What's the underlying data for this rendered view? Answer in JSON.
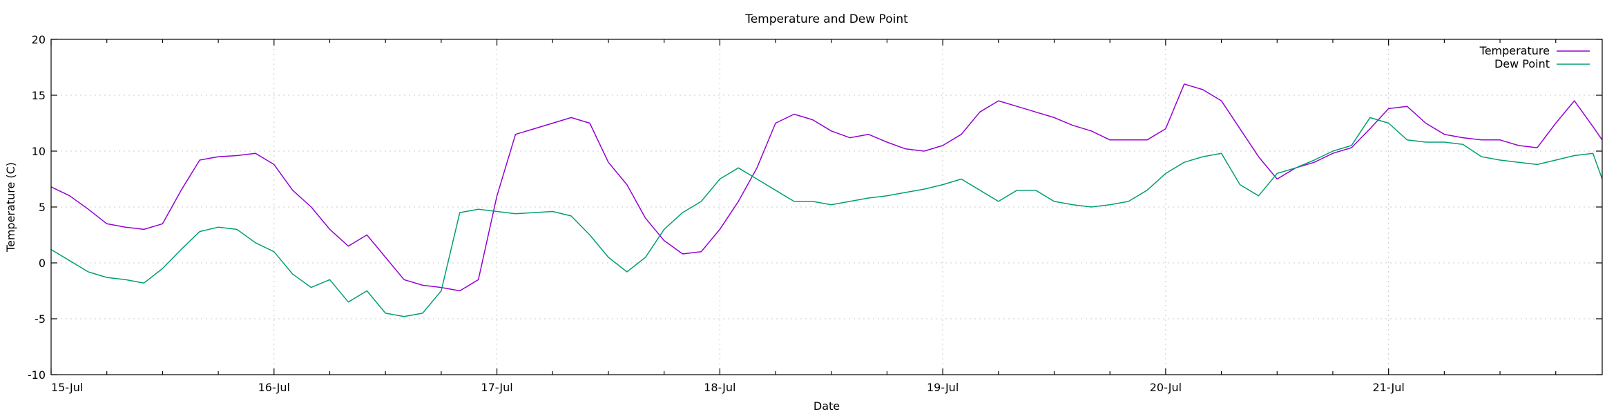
{
  "chart_data": {
    "type": "line",
    "title": "Temperature and Dew Point",
    "xlabel": "Date",
    "ylabel": "Temperature (C)",
    "x_ticks": [
      "15-Jul",
      "16-Jul",
      "17-Jul",
      "18-Jul",
      "19-Jul",
      "20-Jul",
      "21-Jul"
    ],
    "xlim": [
      "15-Jul 00:00",
      "21-Jul 23:00"
    ],
    "y_ticks": [
      -10,
      -5,
      0,
      5,
      10,
      15,
      20
    ],
    "ylim": [
      -10,
      20
    ],
    "grid": true,
    "legend_position": "top-right",
    "x": [
      "15-Jul 00:00",
      "15-Jul 02:00",
      "15-Jul 04:00",
      "15-Jul 06:00",
      "15-Jul 08:00",
      "15-Jul 10:00",
      "15-Jul 12:00",
      "15-Jul 14:00",
      "15-Jul 16:00",
      "15-Jul 18:00",
      "15-Jul 20:00",
      "15-Jul 22:00",
      "16-Jul 00:00",
      "16-Jul 02:00",
      "16-Jul 04:00",
      "16-Jul 06:00",
      "16-Jul 08:00",
      "16-Jul 10:00",
      "16-Jul 12:00",
      "16-Jul 14:00",
      "16-Jul 16:00",
      "16-Jul 18:00",
      "16-Jul 20:00",
      "16-Jul 22:00",
      "17-Jul 00:00",
      "17-Jul 02:00",
      "17-Jul 04:00",
      "17-Jul 06:00",
      "17-Jul 08:00",
      "17-Jul 10:00",
      "17-Jul 12:00",
      "17-Jul 14:00",
      "17-Jul 16:00",
      "17-Jul 18:00",
      "17-Jul 20:00",
      "17-Jul 22:00",
      "18-Jul 00:00",
      "18-Jul 02:00",
      "18-Jul 04:00",
      "18-Jul 06:00",
      "18-Jul 08:00",
      "18-Jul 10:00",
      "18-Jul 12:00",
      "18-Jul 14:00",
      "18-Jul 16:00",
      "18-Jul 18:00",
      "18-Jul 20:00",
      "18-Jul 22:00",
      "19-Jul 00:00",
      "19-Jul 02:00",
      "19-Jul 04:00",
      "19-Jul 06:00",
      "19-Jul 08:00",
      "19-Jul 10:00",
      "19-Jul 12:00",
      "19-Jul 14:00",
      "19-Jul 16:00",
      "19-Jul 18:00",
      "19-Jul 20:00",
      "19-Jul 22:00",
      "20-Jul 00:00",
      "20-Jul 02:00",
      "20-Jul 04:00",
      "20-Jul 06:00",
      "20-Jul 08:00",
      "20-Jul 10:00",
      "20-Jul 12:00",
      "20-Jul 14:00",
      "20-Jul 16:00",
      "20-Jul 18:00",
      "20-Jul 20:00",
      "20-Jul 22:00",
      "21-Jul 00:00",
      "21-Jul 02:00",
      "21-Jul 04:00",
      "21-Jul 06:00",
      "21-Jul 08:00",
      "21-Jul 10:00",
      "21-Jul 12:00",
      "21-Jul 14:00",
      "21-Jul 16:00",
      "21-Jul 18:00",
      "21-Jul 20:00",
      "21-Jul 22:00",
      "21-Jul 23:00"
    ],
    "series": [
      {
        "name": "Temperature",
        "color": "#9400d3",
        "values": [
          6.8,
          6.0,
          4.8,
          3.5,
          3.2,
          3.0,
          3.5,
          6.5,
          9.2,
          9.5,
          9.6,
          9.8,
          8.8,
          6.5,
          5.0,
          3.0,
          1.5,
          2.5,
          0.5,
          -1.5,
          -2.0,
          -2.2,
          -2.5,
          -1.5,
          6.0,
          11.5,
          12.0,
          12.5,
          13.0,
          12.5,
          9.0,
          7.0,
          4.0,
          2.0,
          0.8,
          1.0,
          3.0,
          5.5,
          8.5,
          12.5,
          13.3,
          12.8,
          11.8,
          11.2,
          11.5,
          10.8,
          10.2,
          10.0,
          10.5,
          11.5,
          13.5,
          14.5,
          14.0,
          13.5,
          13.0,
          12.3,
          11.8,
          11.0,
          11.0,
          11.0,
          12.0,
          16.0,
          15.5,
          14.5,
          12.0,
          9.5,
          7.5,
          8.5,
          9.0,
          9.8,
          10.3,
          12.0,
          13.8,
          14.0,
          12.5,
          11.5,
          11.2,
          11.0,
          11.0,
          10.5,
          10.3,
          12.5,
          14.5,
          12.2,
          11.0
        ]
      },
      {
        "name": "Dew Point",
        "color": "#009e73",
        "values": [
          1.2,
          0.2,
          -0.8,
          -1.3,
          -1.5,
          -1.8,
          -0.5,
          1.2,
          2.8,
          3.2,
          3.0,
          1.8,
          1.0,
          -1.0,
          -2.2,
          -1.5,
          -3.5,
          -2.5,
          -4.5,
          -4.8,
          -4.5,
          -2.5,
          4.5,
          4.8,
          4.6,
          4.4,
          4.5,
          4.6,
          4.2,
          2.5,
          0.5,
          -0.8,
          0.5,
          3.0,
          4.5,
          5.5,
          7.5,
          8.5,
          7.5,
          6.5,
          5.5,
          5.5,
          5.2,
          5.5,
          5.8,
          6.0,
          6.3,
          6.6,
          7.0,
          7.5,
          6.5,
          5.5,
          6.5,
          6.5,
          5.5,
          5.2,
          5.0,
          5.2,
          5.5,
          6.5,
          8.0,
          9.0,
          9.5,
          9.8,
          7.0,
          6.0,
          8.0,
          8.5,
          9.2,
          10.0,
          10.5,
          13.0,
          12.5,
          11.0,
          10.8,
          10.8,
          10.6,
          9.5,
          9.2,
          9.0,
          8.8,
          9.2,
          9.6,
          9.8,
          7.5
        ]
      }
    ]
  }
}
